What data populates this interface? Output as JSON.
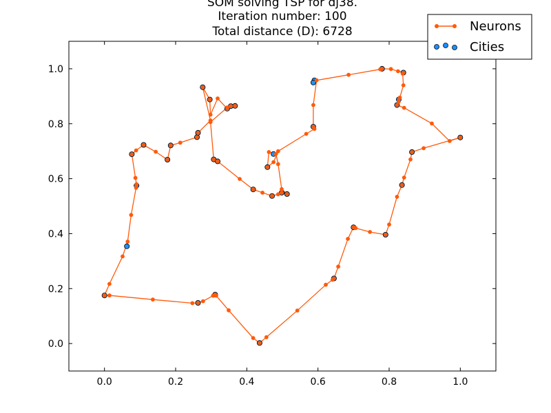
{
  "chart_data": {
    "type": "scatter",
    "title_lines": [
      "SOM solving TSP for dj38.",
      "Iteration number: 100",
      "Total distance (D): 6728"
    ],
    "xlabel": "",
    "ylabel": "",
    "xlim": [
      -0.1,
      1.1
    ],
    "ylim": [
      -0.1,
      1.1
    ],
    "x_ticks": [
      "0.0",
      "0.2",
      "0.4",
      "0.6",
      "0.8",
      "1.0"
    ],
    "y_ticks": [
      "0.0",
      "0.2",
      "0.4",
      "0.6",
      "0.8",
      "1.0"
    ],
    "x_tick_values": [
      0.0,
      0.2,
      0.4,
      0.6,
      0.8,
      1.0
    ],
    "y_tick_values": [
      0.0,
      0.2,
      0.4,
      0.6,
      0.8,
      1.0
    ],
    "grid": false,
    "legend": {
      "position": "top-right",
      "entries": [
        "Neurons",
        "Cities"
      ]
    },
    "colors": {
      "neurons": "#ff5a0a",
      "cities": "#1e90ff"
    },
    "series": [
      {
        "name": "Neurons",
        "kind": "line-markers",
        "x": [
          0.0,
          0.014,
          0.051,
          0.065,
          0.075,
          0.089,
          0.09,
          0.087,
          0.077,
          0.089,
          0.11,
          0.144,
          0.177,
          0.186,
          0.213,
          0.26,
          0.263,
          0.298,
          0.276,
          0.296,
          0.298,
          0.318,
          0.345,
          0.355,
          0.367,
          0.345,
          0.298,
          0.307,
          0.318,
          0.38,
          0.418,
          0.444,
          0.471,
          0.488,
          0.498,
          0.513,
          0.498,
          0.488,
          0.482,
          0.462,
          0.458,
          0.475,
          0.488,
          0.567,
          0.59,
          0.587,
          0.587,
          0.596,
          0.686,
          0.775,
          0.78,
          0.805,
          0.825,
          0.84,
          0.838,
          0.84,
          0.83,
          0.827,
          0.822,
          0.842,
          0.92,
          0.97,
          1.0,
          0.897,
          0.864,
          0.86,
          0.842,
          0.836,
          0.822,
          0.8,
          0.79,
          0.746,
          0.706,
          0.7,
          0.684,
          0.657,
          0.645,
          0.641,
          0.622,
          0.542,
          0.455,
          0.436,
          0.418,
          0.349,
          0.314,
          0.311,
          0.305,
          0.277,
          0.263,
          0.247,
          0.136,
          0.014,
          0.0
        ],
        "y": [
          0.175,
          0.217,
          0.317,
          0.371,
          0.468,
          0.567,
          0.58,
          0.603,
          0.689,
          0.703,
          0.723,
          0.698,
          0.669,
          0.721,
          0.731,
          0.751,
          0.767,
          0.812,
          0.933,
          0.888,
          0.833,
          0.892,
          0.855,
          0.864,
          0.865,
          0.859,
          0.806,
          0.67,
          0.663,
          0.599,
          0.561,
          0.549,
          0.537,
          0.543,
          0.549,
          0.544,
          0.562,
          0.653,
          0.69,
          0.697,
          0.642,
          0.66,
          0.7,
          0.763,
          0.781,
          0.789,
          0.868,
          0.958,
          0.978,
          0.998,
          1.0,
          0.999,
          0.991,
          0.986,
          0.982,
          0.94,
          0.895,
          0.88,
          0.868,
          0.858,
          0.801,
          0.737,
          0.75,
          0.711,
          0.697,
          0.67,
          0.604,
          0.577,
          0.534,
          0.433,
          0.396,
          0.406,
          0.42,
          0.423,
          0.381,
          0.28,
          0.237,
          0.232,
          0.214,
          0.12,
          0.023,
          0.002,
          0.02,
          0.121,
          0.174,
          0.178,
          0.174,
          0.154,
          0.148,
          0.147,
          0.16,
          0.175,
          0.175
        ]
      },
      {
        "name": "Cities",
        "kind": "scatter",
        "x": [
          0.0,
          0.063,
          0.09,
          0.077,
          0.11,
          0.177,
          0.186,
          0.26,
          0.263,
          0.276,
          0.296,
          0.345,
          0.355,
          0.367,
          0.307,
          0.318,
          0.418,
          0.471,
          0.498,
          0.513,
          0.458,
          0.475,
          0.587,
          0.59,
          0.587,
          0.78,
          0.84,
          0.822,
          0.827,
          1.0,
          0.864,
          0.836,
          0.79,
          0.7,
          0.645,
          0.436,
          0.311,
          0.263
        ],
        "y": [
          0.175,
          0.354,
          0.575,
          0.689,
          0.723,
          0.669,
          0.721,
          0.751,
          0.767,
          0.933,
          0.888,
          0.855,
          0.864,
          0.865,
          0.67,
          0.663,
          0.561,
          0.537,
          0.549,
          0.544,
          0.642,
          0.69,
          0.789,
          0.958,
          0.95,
          1.0,
          0.986,
          0.868,
          0.888,
          0.75,
          0.697,
          0.577,
          0.396,
          0.423,
          0.237,
          0.002,
          0.178,
          0.148
        ]
      }
    ]
  }
}
